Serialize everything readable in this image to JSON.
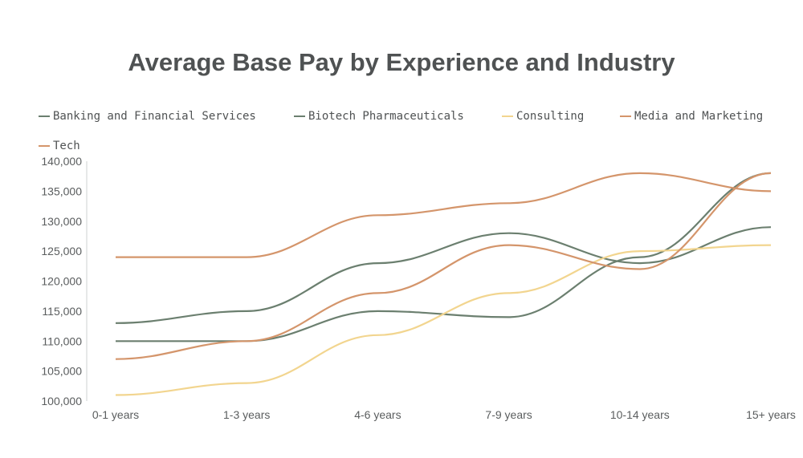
{
  "chart_data": {
    "type": "line",
    "title": "Average Base Pay by Experience and Industry",
    "xlabel": "",
    "ylabel": "",
    "categories": [
      "0-1 years",
      "1-3 years",
      "4-6 years",
      "7-9 years",
      "10-14 years",
      "15+ years"
    ],
    "ylim": [
      100000,
      140000
    ],
    "yticks": [
      "100,000",
      "105,000",
      "110,000",
      "115,000",
      "120,000",
      "125,000",
      "130,000",
      "135,000",
      "140,000"
    ],
    "grid": false,
    "legend_position": "top",
    "series": [
      {
        "name": "Banking and Financial Services",
        "color": "#6b7f6f",
        "values": [
          113000,
          115000,
          123000,
          128000,
          123000,
          129000
        ]
      },
      {
        "name": "Biotech Pharmaceuticals",
        "color": "#6b7f6f",
        "values": [
          110000,
          110000,
          115000,
          114000,
          124000,
          138000
        ]
      },
      {
        "name": "Consulting",
        "color": "#f2d58f",
        "values": [
          101000,
          103000,
          111000,
          118000,
          125000,
          126000
        ]
      },
      {
        "name": "Media and Marketing",
        "color": "#d4956b",
        "values": [
          107000,
          110000,
          118000,
          126000,
          122000,
          138000
        ]
      },
      {
        "name": "Tech",
        "color": "#d4956b",
        "values": [
          124000,
          124000,
          131000,
          133000,
          138000,
          135000
        ]
      }
    ]
  }
}
